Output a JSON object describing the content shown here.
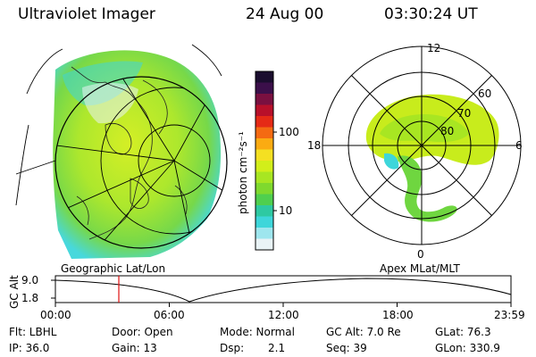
{
  "header": {
    "instrument": "Ultraviolet Imager",
    "date": "24 Aug 00",
    "time": "03:30:24 UT"
  },
  "colorbar": {
    "unit_label": "photon cm⁻²s⁻¹",
    "ticks": [
      "100",
      "10"
    ],
    "colors": [
      "#1a0d2e",
      "#3b0f4a",
      "#7a1040",
      "#b8102a",
      "#e52a16",
      "#f46a12",
      "#fbab12",
      "#f4e022",
      "#d2ee1a",
      "#a8e622",
      "#7fd92e",
      "#4fcf4e",
      "#2ec9a2",
      "#3ed6da",
      "#9ee6ee",
      "#e9f3f6"
    ]
  },
  "left_map": {
    "label": "Geographic Lat/Lon"
  },
  "right_map": {
    "label": "Apex MLat/MLT",
    "mlt_labels": [
      "12",
      "18",
      "6",
      "0"
    ],
    "lat_labels": [
      "60",
      "70",
      "80"
    ]
  },
  "timeline": {
    "axis_label": "GC Alt",
    "y_ticks": [
      "9.0",
      "1.8"
    ],
    "x_ticks": [
      "00:00",
      "06:00",
      "12:00",
      "18:00",
      "23:59"
    ],
    "marker_color": "#e01010"
  },
  "info": {
    "flt": "Flt: LBHL",
    "door": "Door: Open",
    "mode": "Mode: Normal",
    "gc_alt": "GC Alt: 7.0 Re",
    "glat": "GLat: 76.3",
    "ip": "IP: 36.0",
    "gain": "Gain: 13",
    "dsp_label": "Dsp:",
    "dsp_value": "2.1",
    "seq": "Seq: 39",
    "glon": "GLon: 330.9"
  }
}
